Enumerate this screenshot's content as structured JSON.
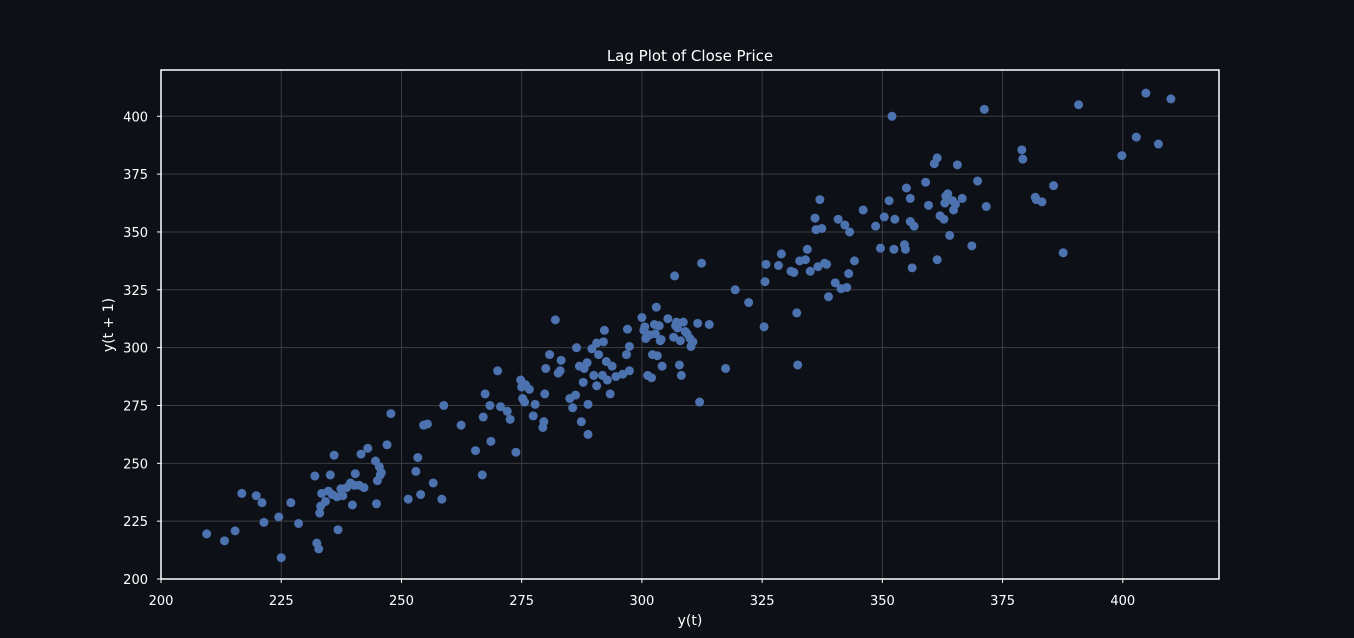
{
  "chart_data": {
    "type": "scatter",
    "title": "Lag Plot of Close Price",
    "xlabel": "y(t)",
    "ylabel": "y(t + 1)",
    "xlim": [
      200,
      420
    ],
    "ylim": [
      200,
      420
    ],
    "xticks": [
      200,
      225,
      250,
      275,
      300,
      325,
      350,
      375,
      400
    ],
    "yticks": [
      200,
      225,
      250,
      275,
      300,
      325,
      350,
      375,
      400
    ],
    "grid": true,
    "colors": {
      "background": "#0d1117",
      "point": "#4c72b0",
      "grid": "#3a3d42",
      "frame": "#ffffff",
      "text": "#ffffff"
    },
    "points": [
      [
        209.5,
        219.5
      ],
      [
        213.2,
        216.5
      ],
      [
        215.4,
        220.8
      ],
      [
        216.8,
        237.0
      ],
      [
        219.8,
        236.0
      ],
      [
        221.0,
        233.0
      ],
      [
        221.4,
        224.5
      ],
      [
        224.5,
        226.8
      ],
      [
        225.0,
        209.2
      ],
      [
        227.0,
        233.0
      ],
      [
        228.6,
        224.0
      ],
      [
        232.0,
        244.5
      ],
      [
        232.4,
        215.5
      ],
      [
        232.8,
        213.0
      ],
      [
        233.0,
        228.5
      ],
      [
        233.2,
        231.5
      ],
      [
        233.4,
        237.0
      ],
      [
        234.2,
        233.5
      ],
      [
        234.8,
        238.0
      ],
      [
        235.2,
        245.0
      ],
      [
        235.6,
        236.5
      ],
      [
        236.0,
        253.5
      ],
      [
        236.6,
        235.5
      ],
      [
        236.8,
        221.3
      ],
      [
        237.4,
        239.0
      ],
      [
        237.8,
        236.0
      ],
      [
        238.6,
        239.5
      ],
      [
        239.4,
        241.5
      ],
      [
        239.8,
        232.0
      ],
      [
        240.2,
        240.5
      ],
      [
        240.4,
        245.5
      ],
      [
        241.2,
        240.5
      ],
      [
        241.6,
        254.0
      ],
      [
        242.2,
        239.5
      ],
      [
        243.0,
        256.5
      ],
      [
        244.6,
        251.0
      ],
      [
        244.8,
        232.5
      ],
      [
        245.0,
        242.5
      ],
      [
        245.4,
        248.5
      ],
      [
        245.6,
        245.0
      ],
      [
        245.8,
        246.0
      ],
      [
        247.0,
        258.0
      ],
      [
        247.8,
        271.5
      ],
      [
        251.4,
        234.5
      ],
      [
        253.0,
        246.5
      ],
      [
        253.4,
        252.5
      ],
      [
        254.0,
        236.5
      ],
      [
        254.6,
        266.5
      ],
      [
        255.4,
        267.0
      ],
      [
        256.6,
        241.5
      ],
      [
        258.4,
        234.5
      ],
      [
        258.8,
        275.0
      ],
      [
        262.4,
        266.5
      ],
      [
        265.4,
        255.5
      ],
      [
        266.8,
        245.0
      ],
      [
        267.0,
        270.0
      ],
      [
        267.4,
        280.0
      ],
      [
        268.4,
        275.0
      ],
      [
        268.6,
        259.5
      ],
      [
        270.0,
        290.0
      ],
      [
        270.6,
        274.5
      ],
      [
        272.0,
        272.5
      ],
      [
        272.6,
        269.0
      ],
      [
        273.8,
        254.8
      ],
      [
        274.8,
        286.0
      ],
      [
        275.0,
        283.0
      ],
      [
        275.2,
        278.0
      ],
      [
        275.6,
        276.5
      ],
      [
        275.8,
        284.0
      ],
      [
        276.6,
        282.0
      ],
      [
        277.4,
        270.5
      ],
      [
        277.8,
        275.5
      ],
      [
        279.4,
        265.5
      ],
      [
        279.6,
        268.0
      ],
      [
        279.8,
        280.0
      ],
      [
        280.0,
        291.0
      ],
      [
        280.8,
        297.0
      ],
      [
        282.0,
        312.0
      ],
      [
        282.6,
        289.0
      ],
      [
        283.0,
        290.0
      ],
      [
        283.2,
        294.5
      ],
      [
        285.0,
        278.0
      ],
      [
        285.6,
        274.0
      ],
      [
        286.2,
        279.5
      ],
      [
        286.4,
        300.0
      ],
      [
        287.0,
        292.0
      ],
      [
        287.4,
        268.0
      ],
      [
        287.8,
        285.0
      ],
      [
        288.0,
        291.0
      ],
      [
        288.6,
        293.5
      ],
      [
        288.8,
        262.5
      ],
      [
        288.8,
        275.5
      ],
      [
        289.6,
        299.5
      ],
      [
        290.0,
        288.0
      ],
      [
        290.6,
        283.5
      ],
      [
        290.6,
        302.0
      ],
      [
        291.0,
        297.0
      ],
      [
        291.8,
        288.0
      ],
      [
        292.0,
        302.5
      ],
      [
        292.2,
        307.5
      ],
      [
        292.6,
        294.0
      ],
      [
        292.8,
        286.0
      ],
      [
        293.4,
        280.0
      ],
      [
        293.8,
        292.0
      ],
      [
        294.6,
        287.5
      ],
      [
        296.0,
        288.5
      ],
      [
        296.8,
        297.0
      ],
      [
        297.0,
        308.0
      ],
      [
        297.4,
        290.0
      ],
      [
        297.4,
        300.5
      ],
      [
        300.0,
        313.0
      ],
      [
        300.4,
        307.5
      ],
      [
        300.6,
        309.0
      ],
      [
        300.8,
        304.0
      ],
      [
        301.2,
        288.0
      ],
      [
        301.6,
        305.5
      ],
      [
        302.0,
        287.0
      ],
      [
        302.2,
        297.0
      ],
      [
        302.6,
        310.0
      ],
      [
        302.8,
        306.0
      ],
      [
        303.0,
        317.5
      ],
      [
        303.2,
        296.5
      ],
      [
        303.6,
        309.5
      ],
      [
        303.8,
        303.0
      ],
      [
        304.0,
        303.5
      ],
      [
        304.2,
        292.0
      ],
      [
        305.4,
        312.5
      ],
      [
        306.6,
        304.5
      ],
      [
        306.8,
        331.0
      ],
      [
        307.0,
        309.5
      ],
      [
        307.2,
        311.0
      ],
      [
        307.4,
        308.5
      ],
      [
        307.8,
        292.5
      ],
      [
        308.0,
        303.0
      ],
      [
        308.2,
        288.0
      ],
      [
        308.6,
        311.0
      ],
      [
        309.0,
        307.0
      ],
      [
        309.4,
        306.0
      ],
      [
        310.0,
        304.0
      ],
      [
        310.2,
        300.5
      ],
      [
        310.6,
        302.5
      ],
      [
        311.6,
        310.5
      ],
      [
        312.0,
        276.5
      ],
      [
        312.4,
        336.5
      ],
      [
        314.0,
        310.0
      ],
      [
        317.4,
        291.0
      ],
      [
        319.4,
        325.0
      ],
      [
        322.2,
        319.5
      ],
      [
        325.4,
        309.0
      ],
      [
        325.6,
        328.5
      ],
      [
        325.8,
        336.0
      ],
      [
        328.4,
        335.5
      ],
      [
        329.0,
        340.5
      ],
      [
        331.0,
        333.0
      ],
      [
        331.6,
        332.5
      ],
      [
        332.2,
        315.0
      ],
      [
        332.4,
        292.5
      ],
      [
        332.8,
        337.5
      ],
      [
        334.0,
        338.0
      ],
      [
        334.4,
        342.5
      ],
      [
        335.0,
        333.0
      ],
      [
        336.0,
        356.0
      ],
      [
        336.2,
        351.0
      ],
      [
        336.6,
        335.0
      ],
      [
        337.0,
        364.0
      ],
      [
        337.4,
        351.5
      ],
      [
        338.0,
        336.5
      ],
      [
        338.4,
        336.0
      ],
      [
        338.8,
        322.0
      ],
      [
        340.2,
        328.0
      ],
      [
        340.8,
        355.5
      ],
      [
        341.4,
        325.5
      ],
      [
        342.2,
        353.0
      ],
      [
        342.6,
        326.0
      ],
      [
        343.0,
        332.0
      ],
      [
        343.2,
        350.0
      ],
      [
        344.2,
        337.5
      ],
      [
        346.0,
        359.5
      ],
      [
        348.6,
        352.5
      ],
      [
        349.6,
        343.0
      ],
      [
        350.4,
        356.5
      ],
      [
        351.4,
        363.5
      ],
      [
        352.0,
        400.0
      ],
      [
        352.4,
        342.5
      ],
      [
        352.6,
        355.5
      ],
      [
        354.6,
        344.5
      ],
      [
        354.8,
        342.5
      ],
      [
        355.0,
        369.0
      ],
      [
        355.8,
        364.5
      ],
      [
        355.8,
        354.5
      ],
      [
        356.2,
        334.5
      ],
      [
        356.6,
        352.5
      ],
      [
        359.0,
        371.5
      ],
      [
        359.6,
        361.5
      ],
      [
        360.8,
        379.5
      ],
      [
        361.4,
        382.0
      ],
      [
        361.4,
        338.0
      ],
      [
        362.0,
        357.0
      ],
      [
        362.8,
        355.5
      ],
      [
        363.0,
        362.5
      ],
      [
        363.2,
        365.5
      ],
      [
        363.6,
        366.5
      ],
      [
        364.0,
        348.5
      ],
      [
        364.6,
        363.5
      ],
      [
        364.8,
        359.5
      ],
      [
        365.2,
        362.0
      ],
      [
        365.6,
        379.0
      ],
      [
        366.6,
        364.5
      ],
      [
        368.6,
        344.0
      ],
      [
        369.8,
        372.0
      ],
      [
        371.2,
        403.0
      ],
      [
        371.6,
        361.0
      ],
      [
        379.0,
        385.5
      ],
      [
        379.2,
        381.5
      ],
      [
        381.8,
        365.0
      ],
      [
        382.0,
        364.0
      ],
      [
        383.2,
        363.0
      ],
      [
        385.6,
        370.0
      ],
      [
        387.6,
        341.0
      ],
      [
        390.8,
        405.0
      ],
      [
        399.8,
        383.0
      ],
      [
        402.8,
        391.0
      ],
      [
        404.8,
        410.0
      ],
      [
        407.4,
        388.0
      ],
      [
        410.0,
        407.5
      ]
    ]
  }
}
